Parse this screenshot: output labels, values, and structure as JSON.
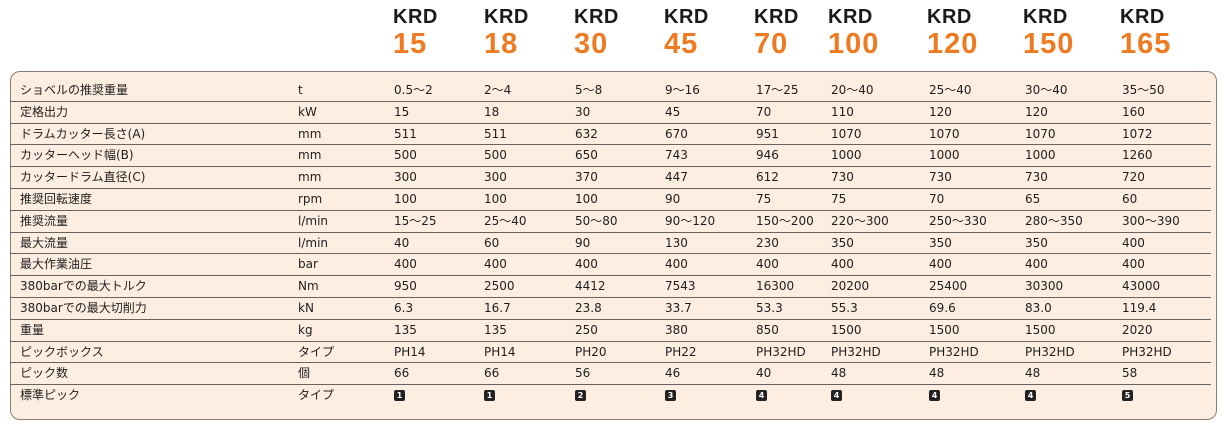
{
  "brand": "KRD",
  "models": [
    "15",
    "18",
    "30",
    "45",
    "70",
    "100",
    "120",
    "150",
    "165"
  ],
  "rows": [
    {
      "label": "ショベルの推奨重量",
      "unit": "t",
      "values": [
        "0.5〜2",
        "2〜4",
        "5〜8",
        "9〜16",
        "17〜25",
        "20〜40",
        "25〜40",
        "30〜40",
        "35〜50"
      ]
    },
    {
      "label": "定格出力",
      "unit": "kW",
      "values": [
        "15",
        "18",
        "30",
        "45",
        "70",
        "110",
        "120",
        "120",
        "160"
      ]
    },
    {
      "label": "ドラムカッター長さ(A)",
      "unit": "mm",
      "values": [
        "511",
        "511",
        "632",
        "670",
        "951",
        "1070",
        "1070",
        "1070",
        "1072"
      ]
    },
    {
      "label": "カッターヘッド幅(B)",
      "unit": "mm",
      "values": [
        "500",
        "500",
        "650",
        "743",
        "946",
        "1000",
        "1000",
        "1000",
        "1260"
      ]
    },
    {
      "label": "カッタードラム直径(C)",
      "unit": "mm",
      "values": [
        "300",
        "300",
        "370",
        "447",
        "612",
        "730",
        "730",
        "730",
        "720"
      ]
    },
    {
      "label": "推奨回転速度",
      "unit": "rpm",
      "values": [
        "100",
        "100",
        "100",
        "90",
        "75",
        "75",
        "70",
        "65",
        "60"
      ]
    },
    {
      "label": "推奨流量",
      "unit": "l/min",
      "values": [
        "15〜25",
        "25〜40",
        "50〜80",
        "90〜120",
        "150〜200",
        "220〜300",
        "250〜330",
        "280〜350",
        "300〜390"
      ]
    },
    {
      "label": "最大流量",
      "unit": "l/min",
      "values": [
        "40",
        "60",
        "90",
        "130",
        "230",
        "350",
        "350",
        "350",
        "400"
      ]
    },
    {
      "label": "最大作業油圧",
      "unit": "bar",
      "values": [
        "400",
        "400",
        "400",
        "400",
        "400",
        "400",
        "400",
        "400",
        "400"
      ]
    },
    {
      "label": "380barでの最大トルク",
      "unit": "Nm",
      "values": [
        "950",
        "2500",
        "4412",
        "7543",
        "16300",
        "20200",
        "25400",
        "30300",
        "43000"
      ]
    },
    {
      "label": "380barでの最大切削力",
      "unit": "kN",
      "values": [
        "6.3",
        "16.7",
        "23.8",
        "33.7",
        "53.3",
        "55.3",
        "69.6",
        "83.0",
        "119.4"
      ]
    },
    {
      "label": "重量",
      "unit": "kg",
      "values": [
        "135",
        "135",
        "250",
        "380",
        "850",
        "1500",
        "1500",
        "1500",
        "2020"
      ]
    },
    {
      "label": "ピックボックス",
      "unit": "タイプ",
      "values": [
        "PH14",
        "PH14",
        "PH20",
        "PH22",
        "PH32HD",
        "PH32HD",
        "PH32HD",
        "PH32HD",
        "PH32HD"
      ]
    },
    {
      "label": "ピック数",
      "unit": "個",
      "values": [
        "66",
        "66",
        "56",
        "46",
        "40",
        "48",
        "48",
        "48",
        "58"
      ]
    },
    {
      "label": "標準ピック",
      "unit": "タイプ",
      "values": [
        "1",
        "1",
        "2",
        "3",
        "4",
        "4",
        "4",
        "4",
        "5"
      ],
      "badge": true
    }
  ]
}
